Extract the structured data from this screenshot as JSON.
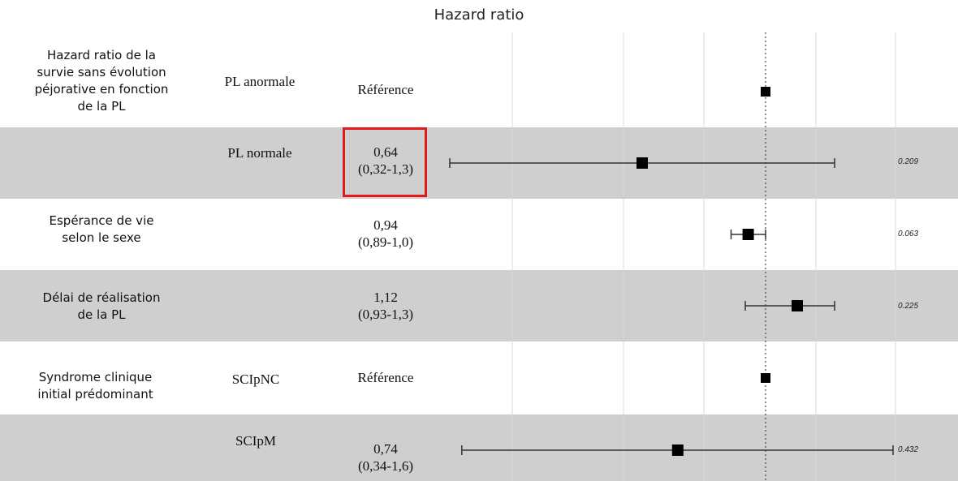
{
  "chart_data": {
    "type": "forest",
    "title": "Hazard ratio",
    "reference_line": 1.0,
    "rows": [
      {
        "group": [
          "Hazard ratio de la",
          "survie sans évolution",
          "péjorative en fonction",
          "de la PL"
        ],
        "level": "PL anormale",
        "hr_text": [
          "Référence"
        ],
        "hr": 1.0,
        "low": null,
        "high": null,
        "p": "",
        "shaded": false,
        "highlight": false
      },
      {
        "group": [],
        "level": "PL normale",
        "hr_text": [
          "0,64",
          "(0,32-1,3)"
        ],
        "hr": 0.64,
        "low": 0.32,
        "high": 1.3,
        "p": "0.209",
        "shaded": true,
        "highlight": true
      },
      {
        "group": [
          "Espérance de vie",
          "selon le sexe"
        ],
        "level": "",
        "hr_text": [
          "0,94",
          "(0,89-1,0)"
        ],
        "hr": 0.94,
        "low": 0.89,
        "high": 1.0,
        "p": "0.063",
        "shaded": false,
        "highlight": false
      },
      {
        "group": [
          "Délai de réalisation",
          "de la PL"
        ],
        "level": "",
        "hr_text": [
          "1,12",
          "(0,93-1,3)"
        ],
        "hr": 1.12,
        "low": 0.93,
        "high": 1.3,
        "p": "0.225",
        "shaded": true,
        "highlight": false
      },
      {
        "group": [
          "Syndrome clinique",
          "initial prédominant"
        ],
        "level": "SCIpNC",
        "hr_text": [
          "Référence"
        ],
        "hr": 1.0,
        "low": null,
        "high": null,
        "p": "",
        "shaded": false,
        "highlight": false
      },
      {
        "group": [],
        "level": "SCIpM",
        "hr_text": [
          "0,74",
          "(0,34-1,6)"
        ],
        "hr": 0.74,
        "low": 0.34,
        "high": 1.6,
        "p": "0.432",
        "shaded": true,
        "highlight": false
      }
    ],
    "colors": {
      "band": "#cfcfcf",
      "grid": "#d9d9d9",
      "marker": "#000000",
      "ci": "#333333",
      "highlight_box": "#e0191b"
    }
  }
}
